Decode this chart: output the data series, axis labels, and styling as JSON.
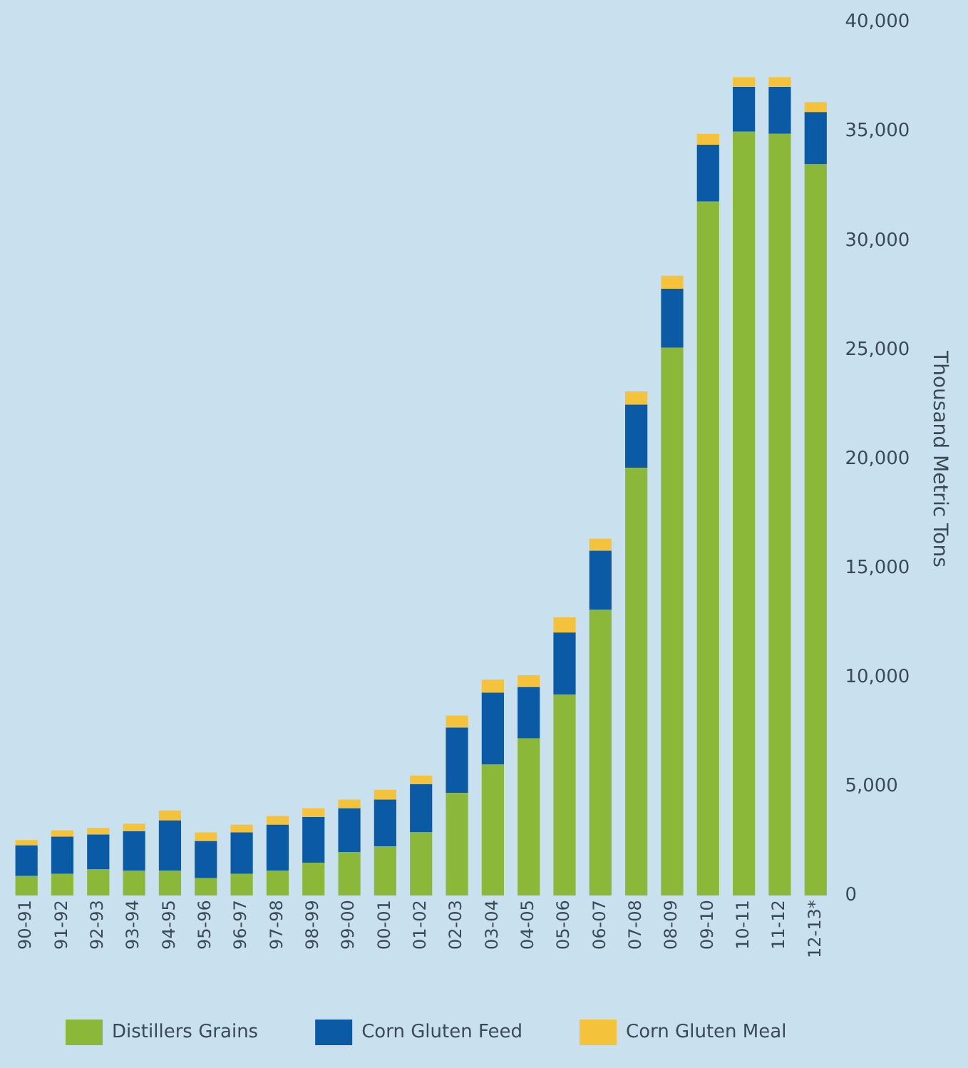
{
  "chart_data": {
    "type": "bar",
    "stacked": true,
    "ylabel": "Thousand Metric Tons",
    "categories": [
      "90-91",
      "91-92",
      "92-93",
      "93-94",
      "94-95",
      "95-96",
      "96-97",
      "97-98",
      "98-99",
      "99-00",
      "00-01",
      "01-02",
      "02-03",
      "03-04",
      "04-05",
      "05-06",
      "06-07",
      "07-08",
      "08-09",
      "09-10",
      "10-11",
      "11-12",
      "12-13*"
    ],
    "series": [
      {
        "name": "Distillers Grains",
        "color": "#8cb83a",
        "values": [
          900,
          1000,
          1200,
          1150,
          1150,
          800,
          1000,
          1150,
          1500,
          2000,
          2250,
          2900,
          4700,
          6000,
          7200,
          9200,
          13100,
          19600,
          25100,
          31800,
          35000,
          34900,
          33500
        ]
      },
      {
        "name": "Corn Gluten Feed",
        "color": "#0a5aa6",
        "values": [
          1400,
          1700,
          1600,
          1800,
          2300,
          1700,
          1900,
          2100,
          2100,
          2000,
          2150,
          2200,
          3000,
          3300,
          2350,
          2850,
          2700,
          2900,
          2700,
          2600,
          2050,
          2150,
          2400
        ]
      },
      {
        "name": "Corn Gluten Meal",
        "color": "#f5c33b",
        "values": [
          250,
          300,
          300,
          350,
          450,
          400,
          350,
          400,
          400,
          400,
          450,
          400,
          550,
          600,
          550,
          700,
          550,
          600,
          600,
          500,
          450,
          450,
          450
        ]
      }
    ],
    "ylim": [
      0,
      40000
    ],
    "yticks": [
      0,
      {
        "value": 5000,
        "label": "5,000"
      },
      {
        "value": 10000,
        "label": "10,000"
      },
      {
        "value": 15000,
        "label": "15,000"
      },
      {
        "value": 20000,
        "label": "20,000"
      },
      {
        "value": 25000,
        "label": "25,000"
      },
      {
        "value": 30000,
        "label": "30,000"
      },
      {
        "value": 35000,
        "label": "35,000"
      },
      {
        "value": 40000,
        "label": "40,000"
      }
    ],
    "grid": false,
    "legend": "bottom left"
  }
}
